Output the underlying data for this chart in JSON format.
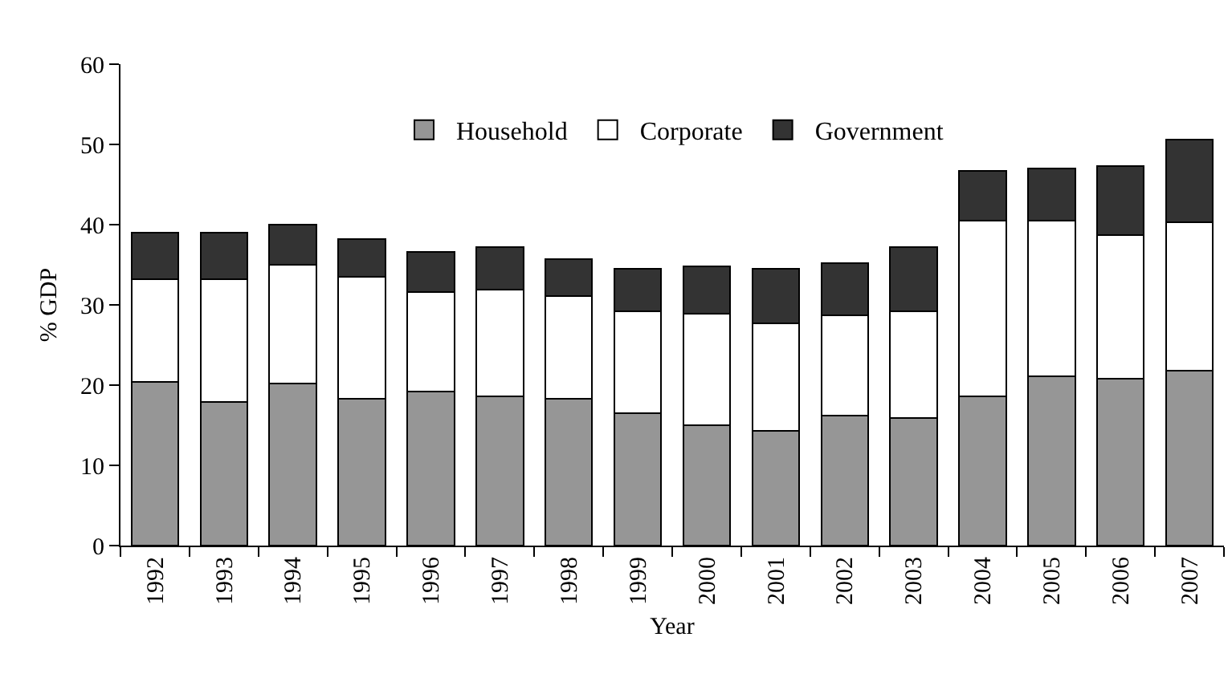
{
  "chart_data": {
    "type": "bar",
    "stacked": true,
    "xlabel": "Year",
    "ylabel": "% GDP",
    "categories": [
      "1992",
      "1993",
      "1994",
      "1995",
      "1996",
      "1997",
      "1998",
      "1999",
      "2000",
      "2001",
      "2002",
      "2003",
      "2004",
      "2005",
      "2006",
      "2007"
    ],
    "series": [
      {
        "name": "Household",
        "color": "#969696",
        "values": [
          20.4,
          17.9,
          20.2,
          18.3,
          19.2,
          18.6,
          18.3,
          16.5,
          15.0,
          14.3,
          16.2,
          15.9,
          18.6,
          21.1,
          20.8,
          21.8
        ]
      },
      {
        "name": "Corporate",
        "color": "#ffffff",
        "values": [
          12.8,
          15.3,
          14.8,
          15.2,
          12.4,
          13.3,
          12.8,
          12.7,
          13.9,
          13.4,
          12.5,
          13.3,
          21.9,
          19.4,
          17.9,
          18.5
        ]
      },
      {
        "name": "Government",
        "color": "#333333",
        "values": [
          5.8,
          5.8,
          5.0,
          4.7,
          5.0,
          5.3,
          4.6,
          5.3,
          5.9,
          6.8,
          6.5,
          8.0,
          6.2,
          6.5,
          8.6,
          10.3
        ]
      }
    ],
    "ylim": [
      0,
      60
    ],
    "yticks": [
      0,
      10,
      20,
      30,
      40,
      50,
      60
    ],
    "grid": false,
    "legend": "top"
  }
}
